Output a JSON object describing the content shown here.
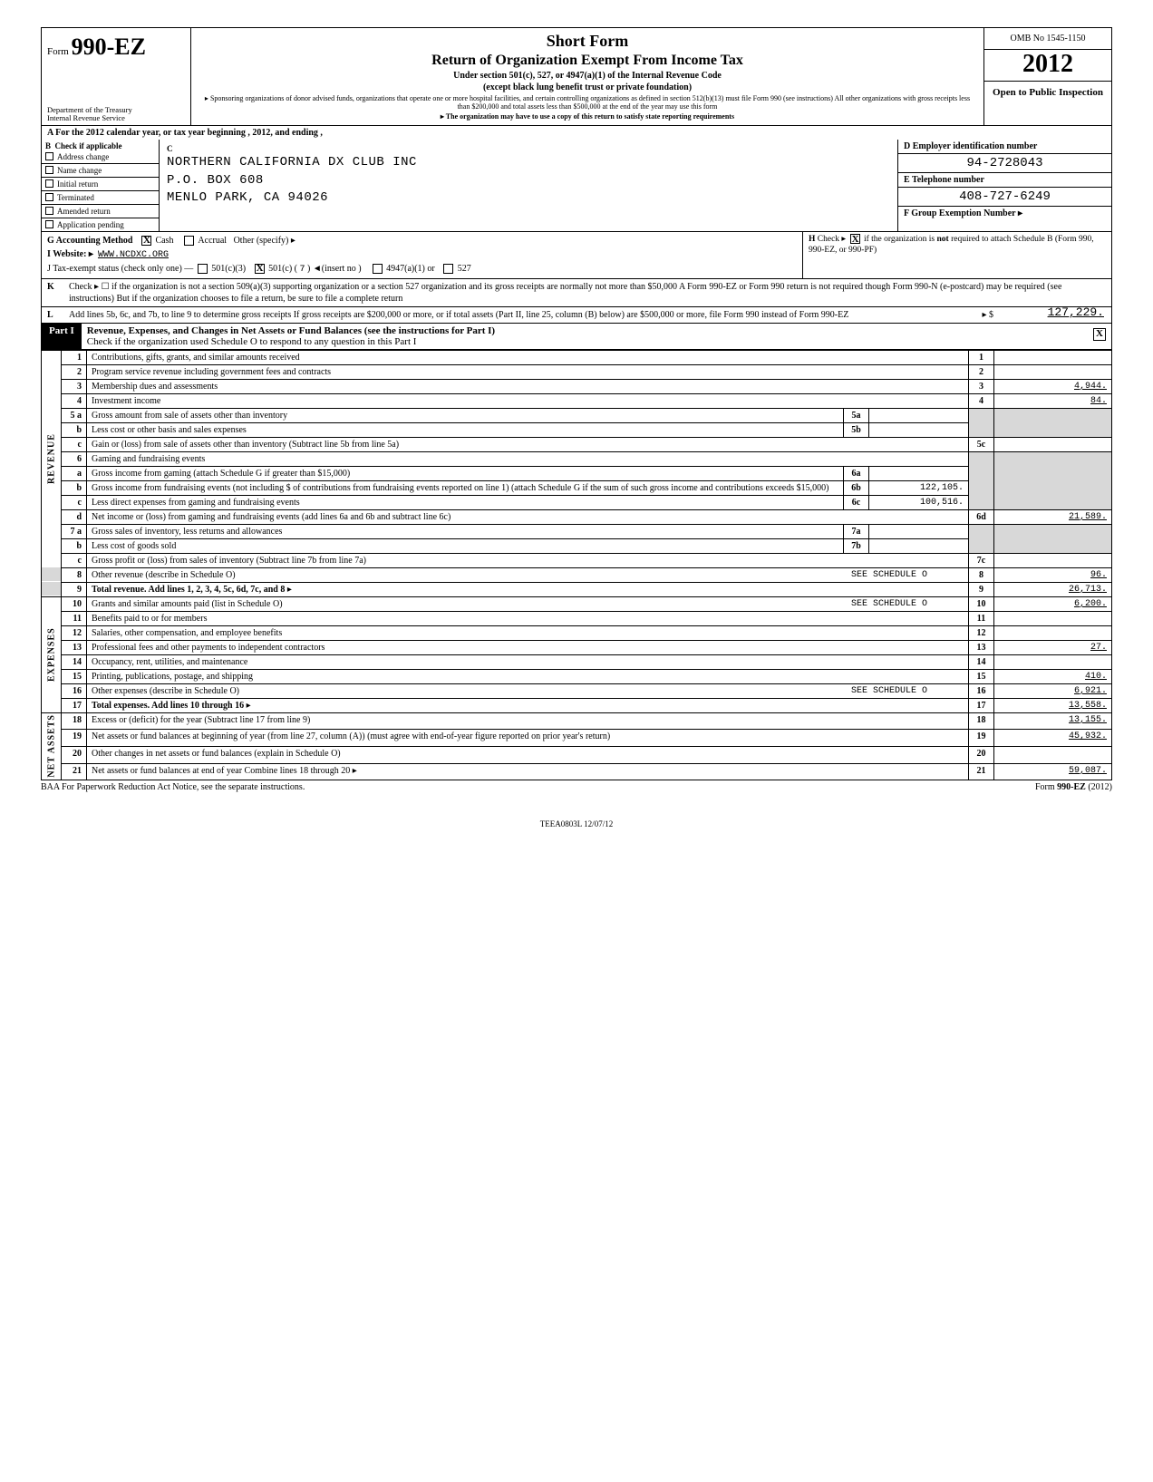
{
  "header": {
    "form_label": "Form",
    "form_number": "990-EZ",
    "dept1": "Department of the Treasury",
    "dept2": "Internal Revenue Service",
    "short_form": "Short Form",
    "title": "Return of Organization Exempt From Income Tax",
    "subtitle1": "Under section 501(c), 527, or 4947(a)(1) of the Internal Revenue Code",
    "subtitle2": "(except black lung benefit trust or private foundation)",
    "fine1": "▸ Sponsoring organizations of donor advised funds, organizations that operate one or more hospital facilities, and certain controlling organizations as defined in section 512(b)(13) must file Form 990 (see instructions) All other organizations with gross receipts less than $200,000 and total assets less than $500,000 at the end of the year may use this form",
    "fine2": "▸ The organization may have to use a copy of this return to satisfy state reporting requirements",
    "omb": "OMB No 1545-1150",
    "year": "2012",
    "open": "Open to Public Inspection"
  },
  "row_a": "A    For the 2012 calendar year, or tax year beginning                                                                               , 2012, and ending                                              ,",
  "b": {
    "header": "Check if applicable",
    "items": [
      "Address change",
      "Name change",
      "Initial return",
      "Terminated",
      "Amended return",
      "Application pending"
    ]
  },
  "c": {
    "name": "NORTHERN CALIFORNIA DX CLUB INC",
    "addr1": "P.O. BOX 608",
    "addr2": "MENLO PARK, CA 94026"
  },
  "d": {
    "label": "D  Employer identification number",
    "value": "94-2728043"
  },
  "e": {
    "label": "E  Telephone number",
    "value": "408-727-6249"
  },
  "f": {
    "label": "F  Group Exemption Number  ▸",
    "value": ""
  },
  "g": {
    "acct_label": "G   Accounting Method",
    "cash": "Cash",
    "accrual": "Accrual",
    "other": "Other (specify) ▸",
    "website_label": "I    Website: ▸",
    "website": "WWW.NCDXC.ORG",
    "j_label": "J    Tax-exempt status (check only one) —",
    "j_501c3": "501(c)(3)",
    "j_501c": "501(c) (",
    "j_insert": "7",
    "j_insert2": ")  ◄(insert no )",
    "j_4947": "4947(a)(1) or",
    "j_527": "527"
  },
  "h": "H  Check ▸        if the organization is not required to attach Schedule B (Form 990, 990-EZ, or 990-PF)",
  "k": {
    "label": "K",
    "text": "Check ▸ ☐  if the organization is not a section 509(a)(3) supporting organization or a section 527 organization and its gross receipts are normally not more than $50,000  A Form 990-EZ or Form 990 return is not required though Form 990-N (e-postcard) may be required (see instructions)  But if the organization chooses to file a return, be sure to file a complete return"
  },
  "l": {
    "label": "L",
    "text": "Add lines 5b, 6c, and 7b, to line 9 to determine gross receipts  If gross receipts are $200,000 or more, or if total assets (Part II, line 25, column (B) below) are $500,000 or more, file Form 990 instead of Form 990-EZ",
    "amount": "127,229."
  },
  "part1": {
    "label": "Part I",
    "title": "Revenue, Expenses, and Changes in Net Assets or Fund Balances (see the instructions for Part I)",
    "sub": "Check if the organization used Schedule O to respond to any question in this Part I"
  },
  "lines": {
    "1": {
      "n": "1",
      "d": "Contributions, gifts, grants, and similar amounts received",
      "r": "1",
      "a": ""
    },
    "2": {
      "n": "2",
      "d": "Program service revenue including government fees and contracts",
      "r": "2",
      "a": ""
    },
    "3": {
      "n": "3",
      "d": "Membership dues and assessments",
      "r": "3",
      "a": "4,944."
    },
    "4": {
      "n": "4",
      "d": "Investment income",
      "r": "4",
      "a": "84."
    },
    "5a": {
      "n": "5 a",
      "d": "Gross amount from sale of assets other than inventory",
      "m": "5a",
      "ma": ""
    },
    "5b": {
      "n": "b",
      "d": "Less  cost or other basis and sales expenses",
      "m": "5b",
      "ma": ""
    },
    "5c": {
      "n": "c",
      "d": "Gain or (loss) from sale of assets other than inventory (Subtract line 5b from line 5a)",
      "r": "5c",
      "a": ""
    },
    "6": {
      "n": "6",
      "d": "Gaming and fundraising events"
    },
    "6a": {
      "n": "a",
      "d": "Gross income from gaming (attach Schedule G if greater than $15,000)",
      "m": "6a",
      "ma": ""
    },
    "6b": {
      "n": "b",
      "d": "Gross income from fundraising events (not including  $                                    of contributions from fundraising events reported on line 1) (attach Schedule G if the sum of such gross income and contributions exceeds $15,000)",
      "m": "6b",
      "ma": "122,105."
    },
    "6c": {
      "n": "c",
      "d": "Less  direct expenses from gaming and fundraising events",
      "m": "6c",
      "ma": "100,516."
    },
    "6d": {
      "n": "d",
      "d": "Net income or (loss) from gaming and fundraising events (add lines 6a and 6b and subtract line 6c)",
      "r": "6d",
      "a": "21,589."
    },
    "7a": {
      "n": "7 a",
      "d": "Gross sales of inventory, less returns and allowances",
      "m": "7a",
      "ma": ""
    },
    "7b": {
      "n": "b",
      "d": "Less  cost of goods sold",
      "m": "7b",
      "ma": ""
    },
    "7c": {
      "n": "c",
      "d": "Gross profit or (loss) from sales of inventory (Subtract line 7b from line 7a)",
      "r": "7c",
      "a": ""
    },
    "8": {
      "n": "8",
      "d": "Other revenue (describe in Schedule O)",
      "note": "SEE SCHEDULE O",
      "r": "8",
      "a": "96."
    },
    "9": {
      "n": "9",
      "d": "Total revenue. Add lines 1, 2, 3, 4, 5c, 6d, 7c, and 8",
      "r": "9",
      "a": "26,713."
    },
    "10": {
      "n": "10",
      "d": "Grants and similar amounts paid (list in Schedule O)",
      "note": "SEE SCHEDULE O",
      "r": "10",
      "a": "6,200."
    },
    "11": {
      "n": "11",
      "d": "Benefits paid to or for members",
      "r": "11",
      "a": ""
    },
    "12": {
      "n": "12",
      "d": "Salaries, other compensation, and employee benefits",
      "r": "12",
      "a": ""
    },
    "13": {
      "n": "13",
      "d": "Professional fees and other payments to independent contractors",
      "r": "13",
      "a": "27."
    },
    "14": {
      "n": "14",
      "d": "Occupancy, rent, utilities, and maintenance",
      "r": "14",
      "a": ""
    },
    "15": {
      "n": "15",
      "d": "Printing, publications, postage, and shipping",
      "r": "15",
      "a": "410."
    },
    "16": {
      "n": "16",
      "d": "Other expenses (describe in Schedule O)",
      "note": "SEE SCHEDULE O",
      "r": "16",
      "a": "6,921."
    },
    "17": {
      "n": "17",
      "d": "Total expenses. Add lines 10 through 16",
      "r": "17",
      "a": "13,558."
    },
    "18": {
      "n": "18",
      "d": "Excess or (deficit) for the year (Subtract line 17 from line 9)",
      "r": "18",
      "a": "13,155."
    },
    "19": {
      "n": "19",
      "d": "Net assets or fund balances at beginning of year (from line 27, column (A)) (must agree with end-of-year figure reported on prior year's return)",
      "r": "19",
      "a": "45,932."
    },
    "20": {
      "n": "20",
      "d": "Other changes in net assets or fund balances (explain in Schedule O)",
      "r": "20",
      "a": ""
    },
    "21": {
      "n": "21",
      "d": "Net assets or fund balances at end of year  Combine lines 18 through 20",
      "r": "21",
      "a": "59,087."
    }
  },
  "side": {
    "rev": "REVENUE",
    "exp": "EXPENSES",
    "net": "NET ASSETS"
  },
  "footer": {
    "left": "BAA  For Paperwork Reduction Act Notice, see the separate instructions.",
    "right": "Form 990-EZ (2012)",
    "teea": "TEEA0803L  12/07/12"
  }
}
